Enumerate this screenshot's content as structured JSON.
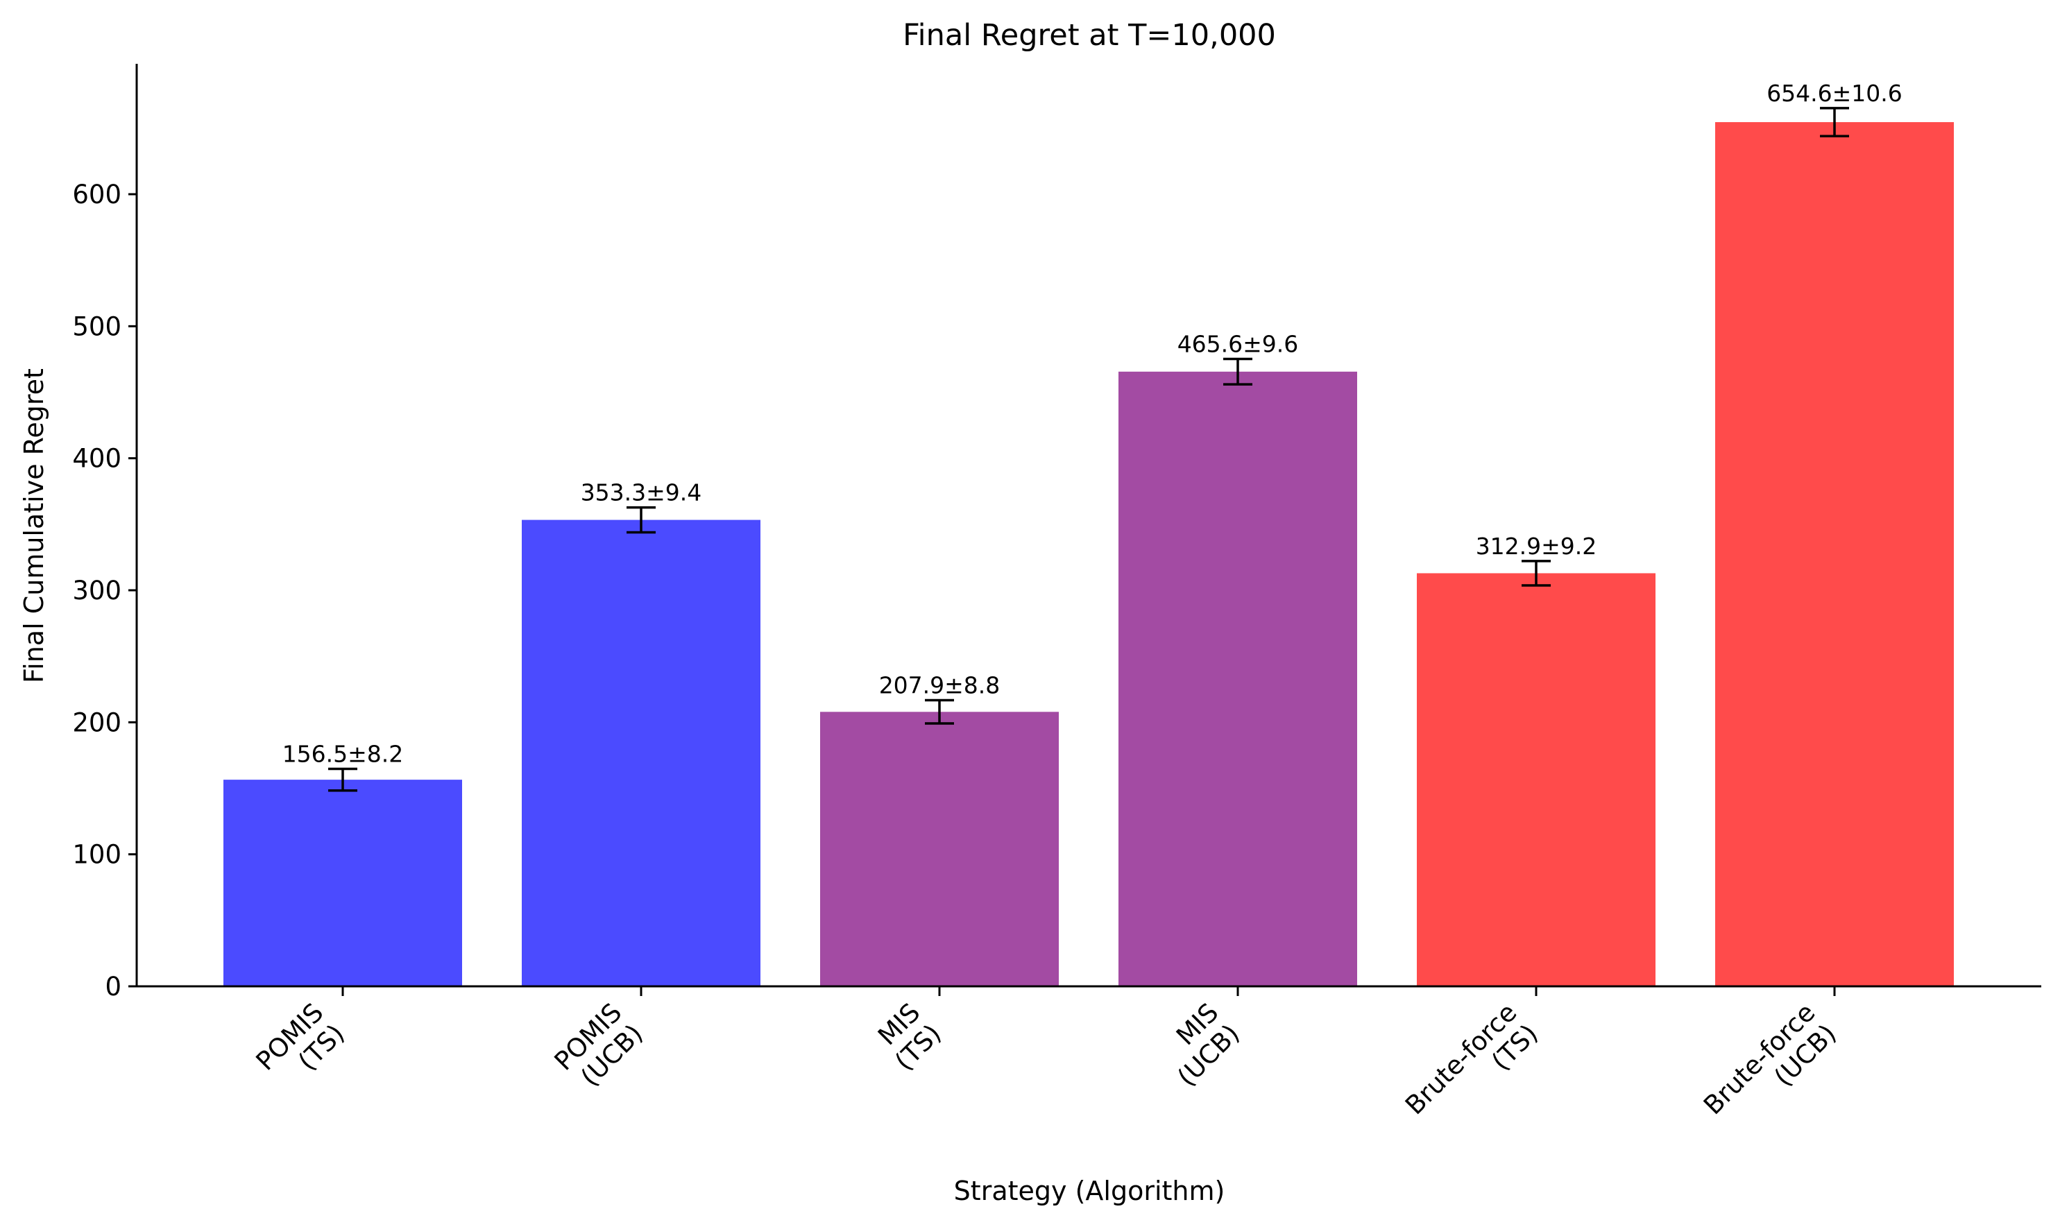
{
  "chart_data": {
    "type": "bar",
    "title": "Final Regret at T=10,000",
    "xlabel": "Strategy (Algorithm)",
    "ylabel": "Final Cumulative Regret",
    "categories": [
      [
        "POMIS",
        "(TS)"
      ],
      [
        "POMIS",
        "(UCB)"
      ],
      [
        "MIS",
        "(TS)"
      ],
      [
        "MIS",
        "(UCB)"
      ],
      [
        "Brute-force",
        "(TS)"
      ],
      [
        "Brute-force",
        "(UCB)"
      ]
    ],
    "values": [
      156.5,
      353.3,
      207.9,
      465.6,
      312.9,
      654.6
    ],
    "errors": [
      8.2,
      9.4,
      8.8,
      9.6,
      9.2,
      10.6
    ],
    "data_labels": [
      "156.5±8.2",
      "353.3±9.4",
      "207.9±8.8",
      "465.6±9.6",
      "312.9±9.2",
      "654.6±10.6"
    ],
    "colors": [
      "#4b4bff",
      "#4b4bff",
      "#a34ba3",
      "#a34ba3",
      "#ff4b4b",
      "#ff4b4b"
    ],
    "ylim": [
      0,
      700
    ],
    "yticks": [
      0,
      100,
      200,
      300,
      400,
      500,
      600
    ],
    "grid": false,
    "legend": "none"
  }
}
